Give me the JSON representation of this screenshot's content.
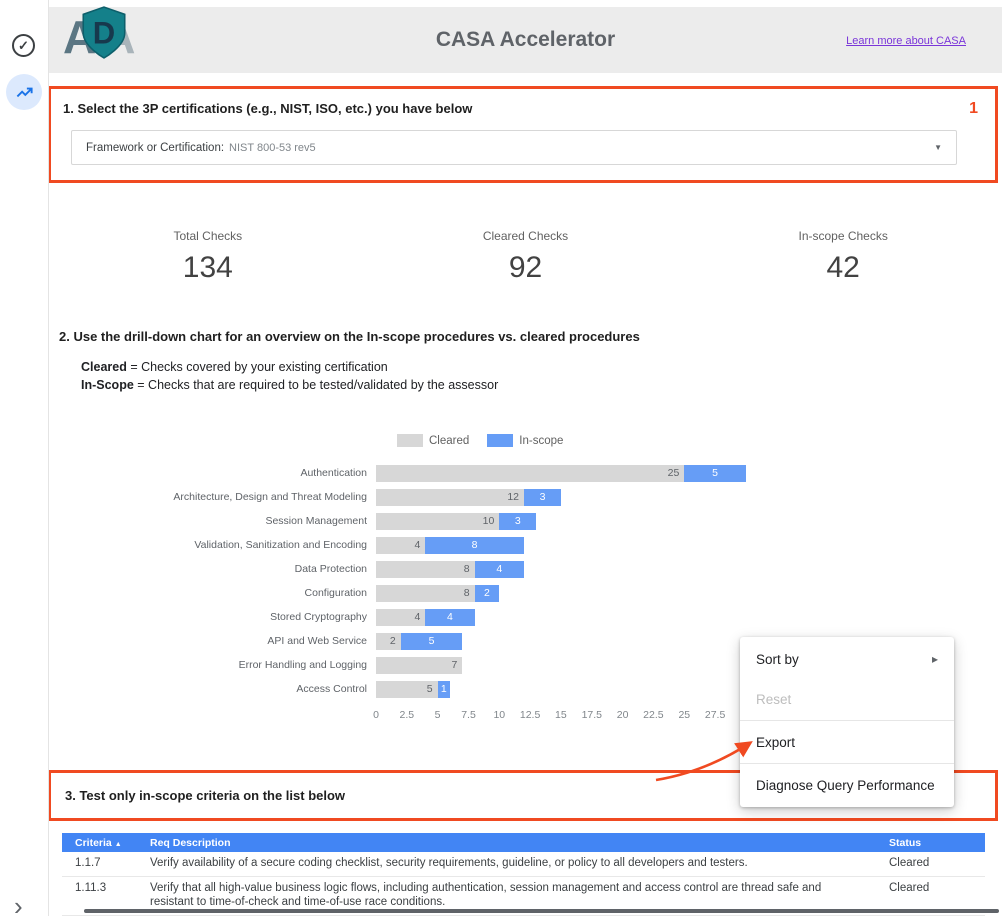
{
  "colors": {
    "annotation": "#f04a21",
    "link": "#7a35d9",
    "table_header_bg": "#4285f4",
    "bar_gray": "#d7d7d7",
    "bar_blue": "#669df6"
  },
  "icons": {
    "check": "✓",
    "expand": "›",
    "dropdown_caret": "▼",
    "sort_asc": "▲"
  },
  "header": {
    "logo_letter_1": "A",
    "logo_letter_d": "D",
    "logo_letter_2": "A",
    "title": "CASA Accelerator",
    "link": "Learn more about CASA"
  },
  "step1": {
    "heading": "1. Select the 3P certifications (e.g., NIST, ISO, etc.) you have below",
    "annotation": "1",
    "dropdown_label": "Framework or Certification:",
    "dropdown_value": "NIST 800-53 rev5"
  },
  "scorecards": [
    {
      "label": "Total Checks",
      "value": "134"
    },
    {
      "label": "Cleared Checks",
      "value": "92"
    },
    {
      "label": "In-scope Checks",
      "value": "42"
    }
  ],
  "step2": {
    "heading": "2. Use the drill-down chart for an overview on the In-scope procedures vs. cleared procedures",
    "definitions": [
      {
        "term": "Cleared",
        "text": " = Checks covered by your existing certification"
      },
      {
        "term": "In-Scope",
        "text": " = Checks that are required to be tested/validated by the assessor"
      }
    ]
  },
  "chart_data": {
    "type": "bar",
    "orientation": "horizontal",
    "stacked": true,
    "legend_position": "top",
    "grid": false,
    "categories": [
      "Authentication",
      "Architecture, Design and Threat Modeling",
      "Session Management",
      "Validation, Sanitization and Encoding",
      "Data Protection",
      "Configuration",
      "Stored Cryptography",
      "API and Web Service",
      "Error Handling and Logging",
      "Access Control"
    ],
    "series": [
      {
        "name": "Cleared",
        "color": "#d7d7d7",
        "values": [
          25,
          12,
          10,
          4,
          8,
          8,
          4,
          2,
          7,
          5
        ]
      },
      {
        "name": "In-scope",
        "color": "#669df6",
        "values": [
          5,
          3,
          3,
          8,
          4,
          2,
          4,
          5,
          0,
          1
        ]
      }
    ],
    "xticks": [
      0,
      2.5,
      5,
      7.5,
      10,
      12.5,
      15,
      17.5,
      20,
      22.5,
      25,
      27.5
    ],
    "xlim": [
      0,
      30
    ],
    "xlabel": "",
    "ylabel": ""
  },
  "context_menu": {
    "submenu_arrow": "▸",
    "items": [
      {
        "label": "Sort by",
        "submenu": true,
        "disabled": false,
        "divider_before": false
      },
      {
        "label": "Reset",
        "submenu": false,
        "disabled": true,
        "divider_before": false
      },
      {
        "label": "Export",
        "submenu": false,
        "disabled": false,
        "divider_before": true
      },
      {
        "label": "Diagnose Query Performance",
        "submenu": false,
        "disabled": false,
        "divider_before": true
      }
    ]
  },
  "step3": {
    "heading": "3. Test only in-scope criteria on the list below"
  },
  "table": {
    "headers": [
      "Criteria",
      "Req Description",
      "Status"
    ],
    "rows": [
      {
        "criteria": "1.1.7",
        "description": "Verify availability of a secure coding checklist, security requirements, guideline, or policy to all developers and testers.",
        "status": "Cleared"
      },
      {
        "criteria": "1.11.3",
        "description": "Verify that all high-value business logic flows, including authentication, session management and access control are thread safe and resistant to time-of-check and time-of-use race conditions.",
        "status": "Cleared"
      }
    ]
  }
}
